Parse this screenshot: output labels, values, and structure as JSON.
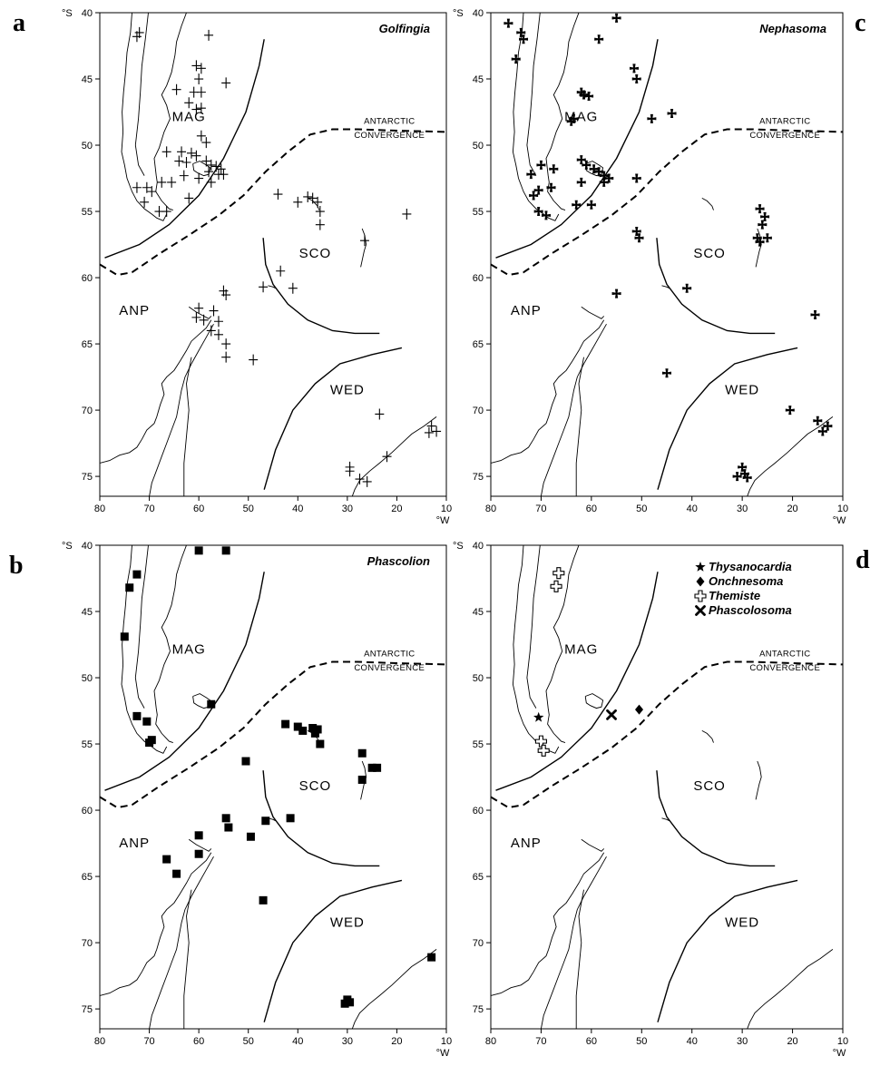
{
  "figure": {
    "lat_unit": "°S",
    "lon_unit": "°W",
    "lon_ticks": [
      80,
      70,
      60,
      50,
      40,
      30,
      20,
      10
    ],
    "lat_ticks": [
      40,
      45,
      50,
      55,
      60,
      65,
      70,
      75
    ],
    "regions": [
      "MAG",
      "SCO",
      "ANP",
      "WED"
    ],
    "convergence_label": [
      "ANTARCTIC",
      "CONVERGENCE"
    ]
  },
  "panels": [
    {
      "letter": "a",
      "title": "Golfingia",
      "marker": "plus",
      "points": [
        [
          72.5,
          41.8
        ],
        [
          72.0,
          41.5
        ],
        [
          58.0,
          41.7
        ],
        [
          60.5,
          44.0
        ],
        [
          59.5,
          44.2
        ],
        [
          60.0,
          45.0
        ],
        [
          54.5,
          45.3
        ],
        [
          64.5,
          45.8
        ],
        [
          61.0,
          46.0
        ],
        [
          59.5,
          46.0
        ],
        [
          62.0,
          46.8
        ],
        [
          60.5,
          47.3
        ],
        [
          59.5,
          47.2
        ],
        [
          59.5,
          49.3
        ],
        [
          58.5,
          49.8
        ],
        [
          66.5,
          50.5
        ],
        [
          63.5,
          50.5
        ],
        [
          61.5,
          50.6
        ],
        [
          60.5,
          50.8
        ],
        [
          64.0,
          51.2
        ],
        [
          62.5,
          51.3
        ],
        [
          58.5,
          51.2
        ],
        [
          57.5,
          51.5
        ],
        [
          56.5,
          51.6
        ],
        [
          55.5,
          51.8
        ],
        [
          58.0,
          52.0
        ],
        [
          56.0,
          52.2
        ],
        [
          55.0,
          52.2
        ],
        [
          63.0,
          52.3
        ],
        [
          60.0,
          52.5
        ],
        [
          57.5,
          52.8
        ],
        [
          65.5,
          52.8
        ],
        [
          67.5,
          52.8
        ],
        [
          72.5,
          53.2
        ],
        [
          70.5,
          53.2
        ],
        [
          69.5,
          53.5
        ],
        [
          62.0,
          54.0
        ],
        [
          71.0,
          54.3
        ],
        [
          68.0,
          55.0
        ],
        [
          66.5,
          55.0
        ],
        [
          44.0,
          53.7
        ],
        [
          40.0,
          54.3
        ],
        [
          38.0,
          53.9
        ],
        [
          37.0,
          54.0
        ],
        [
          36.0,
          54.3
        ],
        [
          35.5,
          55.0
        ],
        [
          35.5,
          56.0
        ],
        [
          26.5,
          57.2
        ],
        [
          18.0,
          55.2
        ],
        [
          43.5,
          59.5
        ],
        [
          47.0,
          60.7
        ],
        [
          41.0,
          60.8
        ],
        [
          55.0,
          61.0
        ],
        [
          54.5,
          61.3
        ],
        [
          60.0,
          62.3
        ],
        [
          57.0,
          62.5
        ],
        [
          60.5,
          63.0
        ],
        [
          59.0,
          63.2
        ],
        [
          56.0,
          63.3
        ],
        [
          57.5,
          64.0
        ],
        [
          56.0,
          64.3
        ],
        [
          54.5,
          65.0
        ],
        [
          54.5,
          66.0
        ],
        [
          49.0,
          66.2
        ],
        [
          23.5,
          70.3
        ],
        [
          13.0,
          71.2
        ],
        [
          12.0,
          71.6
        ],
        [
          13.5,
          71.7
        ],
        [
          29.5,
          74.3
        ],
        [
          29.5,
          74.6
        ],
        [
          22.0,
          73.5
        ],
        [
          27.5,
          75.2
        ],
        [
          26.0,
          75.4
        ]
      ]
    },
    {
      "letter": "b",
      "title": "Phascolion",
      "marker": "square",
      "points": [
        [
          60.0,
          40.4
        ],
        [
          54.5,
          40.4
        ],
        [
          72.5,
          42.2
        ],
        [
          74.0,
          43.2
        ],
        [
          75.0,
          46.9
        ],
        [
          72.5,
          52.9
        ],
        [
          70.5,
          53.3
        ],
        [
          69.5,
          54.7
        ],
        [
          70.0,
          54.9
        ],
        [
          57.5,
          52.0
        ],
        [
          50.5,
          56.3
        ],
        [
          42.5,
          53.5
        ],
        [
          40.0,
          53.7
        ],
        [
          39.0,
          54.0
        ],
        [
          37.0,
          53.8
        ],
        [
          36.5,
          54.2
        ],
        [
          36.0,
          53.9
        ],
        [
          35.5,
          55.0
        ],
        [
          27.0,
          55.7
        ],
        [
          27.0,
          57.7
        ],
        [
          24.0,
          56.8
        ],
        [
          25.0,
          56.8
        ],
        [
          54.5,
          60.6
        ],
        [
          54.0,
          61.3
        ],
        [
          46.5,
          60.8
        ],
        [
          41.5,
          60.6
        ],
        [
          49.5,
          62.0
        ],
        [
          60.0,
          61.9
        ],
        [
          60.0,
          63.3
        ],
        [
          66.5,
          63.7
        ],
        [
          64.5,
          64.8
        ],
        [
          47.0,
          66.8
        ],
        [
          13.0,
          71.1
        ],
        [
          30.0,
          74.3
        ],
        [
          30.5,
          74.6
        ],
        [
          29.5,
          74.5
        ]
      ]
    },
    {
      "letter": "c",
      "title": "Nephasoma",
      "marker": "cross-pattee",
      "points": [
        [
          76.5,
          40.8
        ],
        [
          55.0,
          40.4
        ],
        [
          74.0,
          41.5
        ],
        [
          73.5,
          42.0
        ],
        [
          58.5,
          42.0
        ],
        [
          75.0,
          43.5
        ],
        [
          51.5,
          44.2
        ],
        [
          51.0,
          45.0
        ],
        [
          62.0,
          46.0
        ],
        [
          61.5,
          46.2
        ],
        [
          60.5,
          46.3
        ],
        [
          44.0,
          47.6
        ],
        [
          48.0,
          48.0
        ],
        [
          64.0,
          48.2
        ],
        [
          63.5,
          48.0
        ],
        [
          51.0,
          52.5
        ],
        [
          62.0,
          51.1
        ],
        [
          61.0,
          51.5
        ],
        [
          59.5,
          51.8
        ],
        [
          58.5,
          52.0
        ],
        [
          57.5,
          52.3
        ],
        [
          56.5,
          52.5
        ],
        [
          67.5,
          51.8
        ],
        [
          62.0,
          52.8
        ],
        [
          57.5,
          52.8
        ],
        [
          70.0,
          51.5
        ],
        [
          72.0,
          52.2
        ],
        [
          70.5,
          53.4
        ],
        [
          71.5,
          53.8
        ],
        [
          68.0,
          53.2
        ],
        [
          63.0,
          54.5
        ],
        [
          60.0,
          54.5
        ],
        [
          70.5,
          55.0
        ],
        [
          69.0,
          55.3
        ],
        [
          26.5,
          54.8
        ],
        [
          25.5,
          55.4
        ],
        [
          26.0,
          56.0
        ],
        [
          27.0,
          57.0
        ],
        [
          26.5,
          57.3
        ],
        [
          25.0,
          57.0
        ],
        [
          51.0,
          56.5
        ],
        [
          50.5,
          57.0
        ],
        [
          41.0,
          60.8
        ],
        [
          55.0,
          61.2
        ],
        [
          15.5,
          62.8
        ],
        [
          45.0,
          67.2
        ],
        [
          20.5,
          70.0
        ],
        [
          15.0,
          70.8
        ],
        [
          13.0,
          71.2
        ],
        [
          14.0,
          71.6
        ],
        [
          30.0,
          74.3
        ],
        [
          29.5,
          74.8
        ],
        [
          31.0,
          75.0
        ],
        [
          29.0,
          75.1
        ]
      ]
    },
    {
      "letter": "d",
      "title": "",
      "legend": [
        {
          "marker": "star",
          "label": "Thysanocardia"
        },
        {
          "marker": "diamond",
          "label": "Onchnesoma"
        },
        {
          "marker": "open-cross",
          "label": "Themiste"
        },
        {
          "marker": "x",
          "label": "Phascolosoma"
        }
      ],
      "points_by_marker": {
        "star": [
          [
            70.5,
            53.0
          ]
        ],
        "diamond": [
          [
            50.5,
            52.4
          ]
        ],
        "open-cross": [
          [
            66.5,
            42.1
          ],
          [
            67.0,
            43.1
          ],
          [
            70.0,
            54.8
          ],
          [
            69.5,
            55.5
          ]
        ],
        "x": [
          [
            56.0,
            52.8
          ]
        ]
      }
    }
  ]
}
